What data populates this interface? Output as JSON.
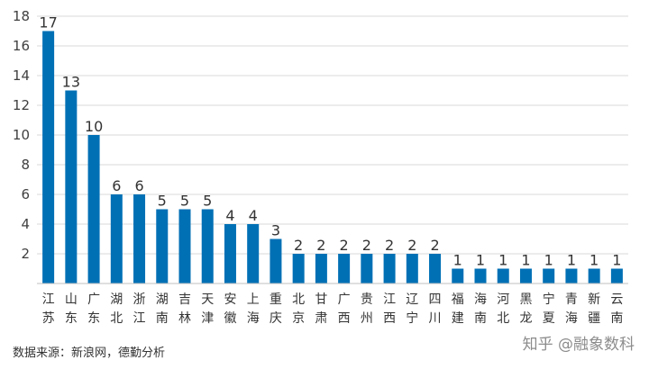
{
  "chart_data": {
    "type": "bar",
    "categories": [
      "江苏",
      "山东",
      "广东",
      "湖北",
      "浙江",
      "湖南",
      "吉林",
      "天津",
      "安徽",
      "上海",
      "重庆",
      "北京",
      "甘肃",
      "广西",
      "贵州",
      "江西",
      "辽宁",
      "四川",
      "福建",
      "海南",
      "河北",
      "黑龙",
      "宁夏",
      "青海",
      "新疆",
      "云南"
    ],
    "values": [
      17,
      13,
      10,
      6,
      6,
      5,
      5,
      5,
      4,
      4,
      3,
      2,
      2,
      2,
      2,
      2,
      2,
      2,
      1,
      1,
      1,
      1,
      1,
      1,
      1,
      1
    ],
    "ylim": [
      0,
      18
    ],
    "yticks": [
      2,
      4,
      6,
      8,
      10,
      12,
      14,
      16,
      18
    ],
    "grid": true,
    "bar_color": "#0070b5",
    "grid_color": "#d9d9d9",
    "title": "",
    "xlabel": "",
    "ylabel": ""
  },
  "source_text": "数据来源：新浪网，德勤分析",
  "watermark": "知乎 @融象数科"
}
